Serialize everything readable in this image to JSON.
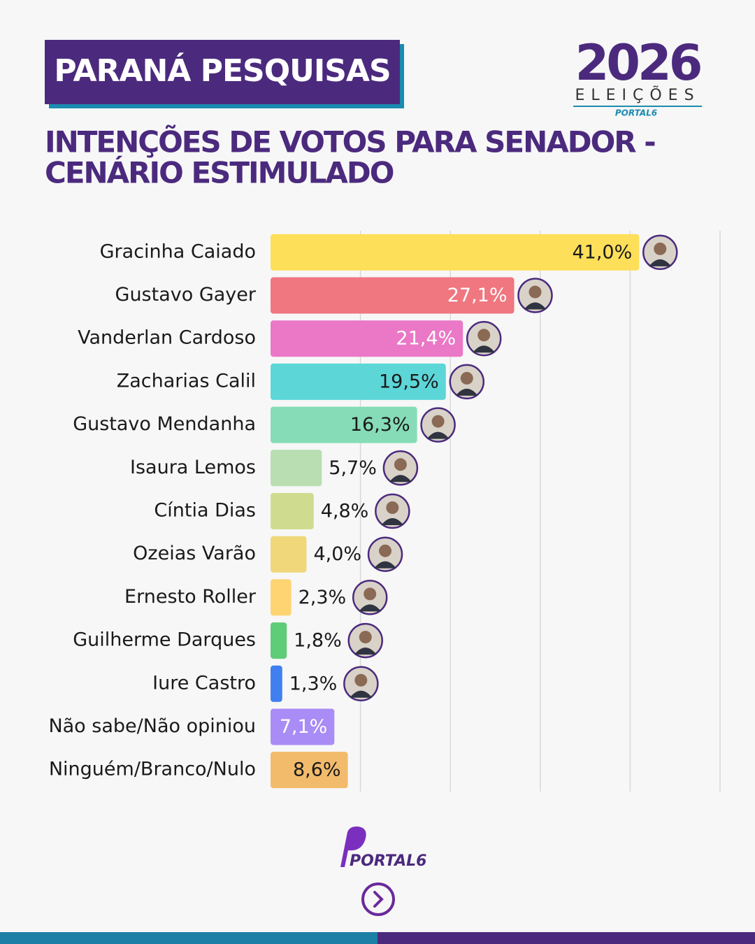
{
  "header": {
    "badge": "PARANÁ PESQUISAS",
    "logo_year": "2026",
    "logo_word": "ELEIÇÕES",
    "logo_brand": "PORTAL6"
  },
  "chart_data": {
    "type": "bar",
    "orientation": "horizontal",
    "title_lines": [
      "INTENÇÕES DE VOTOS PARA SENADOR -",
      "CENÁRIO ESTIMULADO"
    ],
    "categories": [
      "Gracinha Caiado",
      "Gustavo Gayer",
      "Vanderlan Cardoso",
      "Zacharias Calil",
      "Gustavo Mendanha",
      "Isaura Lemos",
      "Cíntia Dias",
      "Ozeias Varão",
      "Ernesto Roller",
      "Guilherme Darques",
      "Iure Castro",
      "Não sabe/Não opiniou",
      "Ninguém/Branco/Nulo"
    ],
    "values": [
      41.0,
      27.1,
      21.4,
      19.5,
      16.3,
      5.7,
      4.8,
      4.0,
      2.3,
      1.8,
      1.3,
      7.1,
      8.6
    ],
    "value_labels": [
      "41,0%",
      "27,1%",
      "21,4%",
      "19,5%",
      "16,3%",
      "5,7%",
      "4,8%",
      "4,0%",
      "2,3%",
      "1,8%",
      "1,3%",
      "7,1%",
      "8,6%"
    ],
    "colors": [
      "#fddf5a",
      "#f0767f",
      "#ea78c6",
      "#5dd6d8",
      "#86dcb6",
      "#b8deb1",
      "#cfdc8f",
      "#efd77a",
      "#fdd471",
      "#5fcc78",
      "#3f7ff0",
      "#a98cf5",
      "#f2bb6b"
    ],
    "value_label_colors": [
      "#1a1a1a",
      "#ffffff",
      "#ffffff",
      "#1a1a1a",
      "#1a1a1a",
      "#1a1a1a",
      "#1a1a1a",
      "#1a1a1a",
      "#1a1a1a",
      "#1a1a1a",
      "#1a1a1a",
      "#ffffff",
      "#1a1a1a"
    ],
    "xlim": [
      0,
      50
    ],
    "xticks": [
      10,
      20,
      30,
      40,
      50
    ],
    "grid": true
  },
  "footer": {
    "brand": "PORTAL6"
  }
}
